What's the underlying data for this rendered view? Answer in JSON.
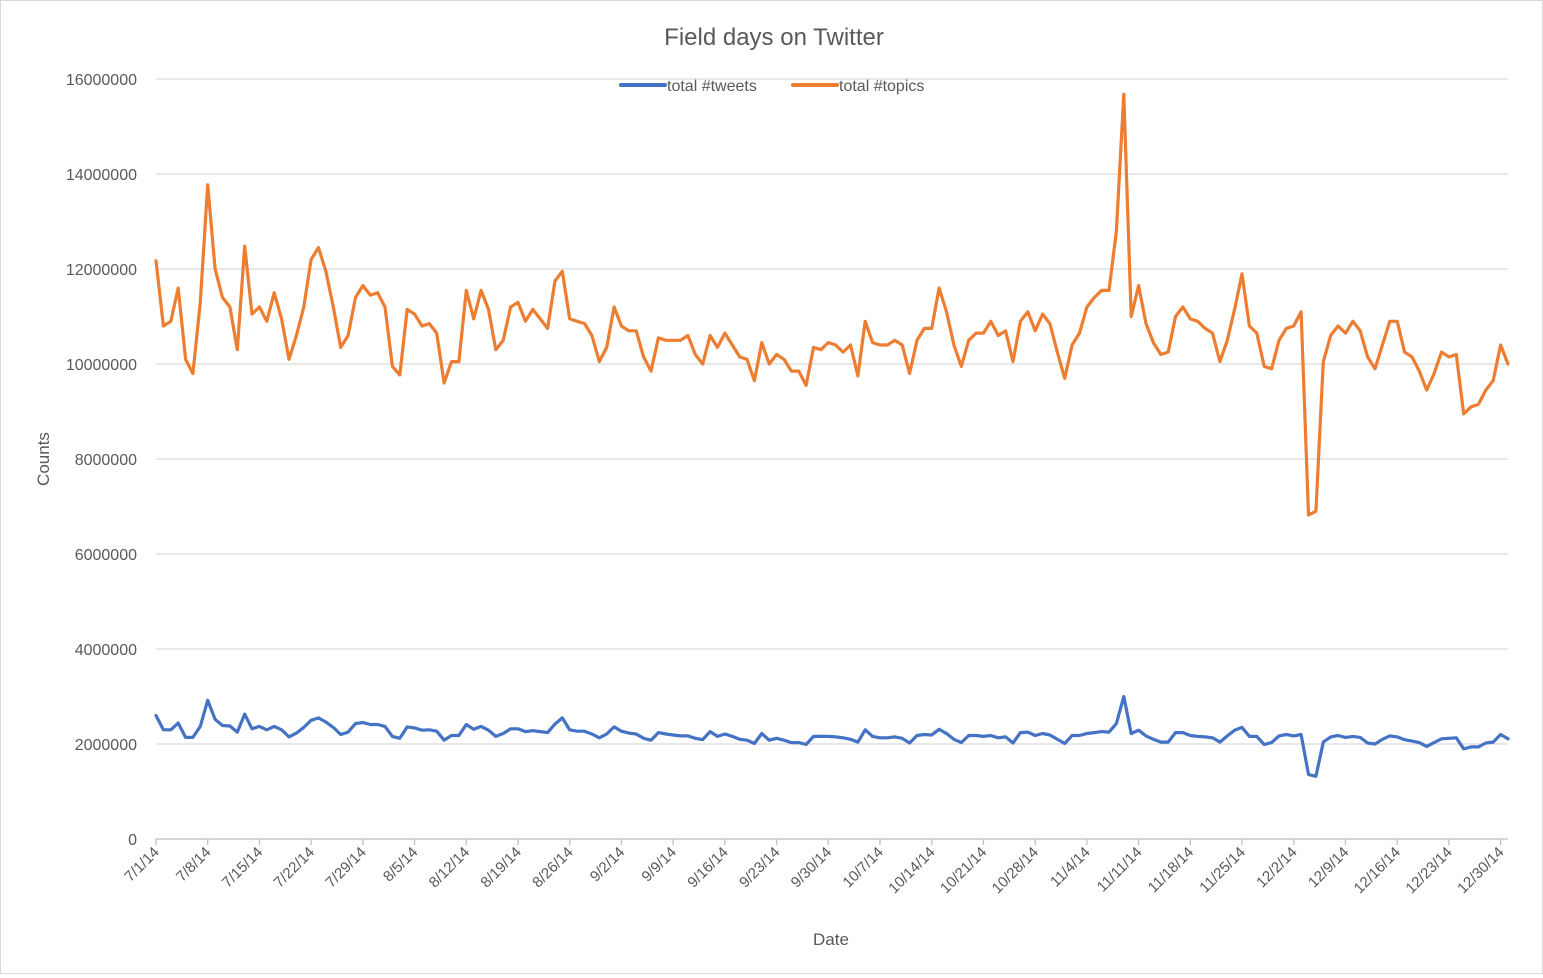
{
  "chart_data": {
    "type": "line",
    "title": "Field days on Twitter",
    "xlabel": "Date",
    "ylabel": "Counts",
    "ylim": [
      0,
      16000000
    ],
    "yticks": [
      "0",
      "2000000",
      "4000000",
      "6000000",
      "8000000",
      "10000000",
      "12000000",
      "14000000",
      "16000000"
    ],
    "xtick_labels": [
      "7/1/14",
      "7/8/14",
      "7/15/14",
      "7/22/14",
      "7/29/14",
      "8/5/14",
      "8/12/14",
      "8/19/14",
      "8/26/14",
      "9/2/14",
      "9/9/14",
      "9/16/14",
      "9/23/14",
      "9/30/14",
      "10/7/14",
      "10/14/14",
      "10/21/14",
      "10/28/14",
      "11/4/14",
      "11/11/14",
      "11/18/14",
      "11/25/14",
      "12/2/14",
      "12/9/14",
      "12/16/14",
      "12/23/14",
      "12/30/14"
    ],
    "grid": true,
    "legend_position": "top",
    "x": [
      "7/1/14",
      "7/2/14",
      "7/3/14",
      "7/4/14",
      "7/5/14",
      "7/6/14",
      "7/7/14",
      "7/8/14",
      "7/9/14",
      "7/10/14",
      "7/11/14",
      "7/12/14",
      "7/13/14",
      "7/14/14",
      "7/15/14",
      "7/16/14",
      "7/17/14",
      "7/18/14",
      "7/19/14",
      "7/20/14",
      "7/21/14",
      "7/22/14",
      "7/23/14",
      "7/24/14",
      "7/25/14",
      "7/26/14",
      "7/27/14",
      "7/28/14",
      "7/29/14",
      "7/30/14",
      "7/31/14",
      "8/1/14",
      "8/2/14",
      "8/3/14",
      "8/4/14",
      "8/5/14",
      "8/6/14",
      "8/7/14",
      "8/8/14",
      "8/9/14",
      "8/10/14",
      "8/11/14",
      "8/12/14",
      "8/13/14",
      "8/14/14",
      "8/15/14",
      "8/16/14",
      "8/17/14",
      "8/18/14",
      "8/19/14",
      "8/20/14",
      "8/21/14",
      "8/22/14",
      "8/23/14",
      "8/24/14",
      "8/25/14",
      "8/26/14",
      "8/27/14",
      "8/28/14",
      "8/29/14",
      "8/30/14",
      "8/31/14",
      "9/1/14",
      "9/2/14",
      "9/3/14",
      "9/4/14",
      "9/5/14",
      "9/6/14",
      "9/7/14",
      "9/8/14",
      "9/9/14",
      "9/10/14",
      "9/11/14",
      "9/12/14",
      "9/13/14",
      "9/14/14",
      "9/15/14",
      "9/16/14",
      "9/17/14",
      "9/18/14",
      "9/19/14",
      "9/20/14",
      "9/21/14",
      "9/22/14",
      "9/23/14",
      "9/24/14",
      "9/25/14",
      "9/26/14",
      "9/27/14",
      "9/28/14",
      "9/29/14",
      "9/30/14",
      "10/1/14",
      "10/2/14",
      "10/3/14",
      "10/4/14",
      "10/5/14",
      "10/6/14",
      "10/7/14",
      "10/8/14",
      "10/9/14",
      "10/10/14",
      "10/11/14",
      "10/12/14",
      "10/13/14",
      "10/14/14",
      "10/15/14",
      "10/16/14",
      "10/17/14",
      "10/18/14",
      "10/19/14",
      "10/20/14",
      "10/21/14",
      "10/22/14",
      "10/23/14",
      "10/24/14",
      "10/25/14",
      "10/26/14",
      "10/27/14",
      "10/28/14",
      "10/29/14",
      "10/30/14",
      "10/31/14",
      "11/1/14",
      "11/2/14",
      "11/3/14",
      "11/4/14",
      "11/5/14",
      "11/6/14",
      "11/7/14",
      "11/8/14",
      "11/9/14",
      "11/10/14",
      "11/11/14",
      "11/12/14",
      "11/13/14",
      "11/14/14",
      "11/15/14",
      "11/16/14",
      "11/17/14",
      "11/18/14",
      "11/19/14",
      "11/20/14",
      "11/21/14",
      "11/22/14",
      "11/23/14",
      "11/24/14",
      "11/25/14",
      "11/26/14",
      "11/27/14",
      "11/28/14",
      "11/29/14",
      "11/30/14",
      "12/1/14",
      "12/2/14",
      "12/3/14",
      "12/4/14",
      "12/5/14",
      "12/6/14",
      "12/7/14",
      "12/8/14",
      "12/9/14",
      "12/10/14",
      "12/11/14",
      "12/12/14",
      "12/13/14",
      "12/14/14",
      "12/15/14",
      "12/16/14",
      "12/17/14",
      "12/18/14",
      "12/19/14",
      "12/20/14",
      "12/21/14",
      "12/22/14",
      "12/23/14",
      "12/24/14",
      "12/25/14",
      "12/26/14",
      "12/27/14",
      "12/28/14",
      "12/29/14",
      "12/30/14",
      "12/31/14"
    ],
    "series": [
      {
        "name": "total #tweets",
        "color": "#4472C4",
        "values": [
          2600000,
          2300000,
          2300000,
          2440000,
          2140000,
          2140000,
          2370000,
          2920000,
          2520000,
          2390000,
          2380000,
          2250000,
          2630000,
          2320000,
          2370000,
          2300000,
          2370000,
          2300000,
          2150000,
          2230000,
          2350000,
          2500000,
          2550000,
          2460000,
          2350000,
          2200000,
          2250000,
          2430000,
          2450000,
          2410000,
          2410000,
          2370000,
          2160000,
          2120000,
          2360000,
          2340000,
          2290000,
          2300000,
          2270000,
          2080000,
          2180000,
          2180000,
          2410000,
          2310000,
          2370000,
          2290000,
          2160000,
          2220000,
          2320000,
          2320000,
          2260000,
          2280000,
          2260000,
          2240000,
          2420000,
          2550000,
          2300000,
          2270000,
          2270000,
          2210000,
          2130000,
          2210000,
          2360000,
          2270000,
          2230000,
          2210000,
          2120000,
          2080000,
          2240000,
          2210000,
          2190000,
          2170000,
          2170000,
          2120000,
          2090000,
          2260000,
          2160000,
          2210000,
          2160000,
          2100000,
          2080000,
          2010000,
          2220000,
          2080000,
          2120000,
          2080000,
          2030000,
          2030000,
          1990000,
          2160000,
          2160000,
          2160000,
          2150000,
          2130000,
          2100000,
          2040000,
          2300000,
          2160000,
          2130000,
          2130000,
          2150000,
          2120000,
          2020000,
          2180000,
          2200000,
          2190000,
          2310000,
          2220000,
          2100000,
          2030000,
          2180000,
          2180000,
          2160000,
          2180000,
          2130000,
          2150000,
          2020000,
          2240000,
          2250000,
          2180000,
          2220000,
          2190000,
          2100000,
          2010000,
          2180000,
          2180000,
          2220000,
          2240000,
          2260000,
          2250000,
          2430000,
          3000000,
          2220000,
          2290000,
          2170000,
          2100000,
          2040000,
          2040000,
          2240000,
          2240000,
          2180000,
          2160000,
          2150000,
          2130000,
          2040000,
          2170000,
          2290000,
          2350000,
          2160000,
          2160000,
          1990000,
          2030000,
          2170000,
          2200000,
          2170000,
          2200000,
          1360000,
          1320000,
          2040000,
          2150000,
          2180000,
          2140000,
          2160000,
          2140000,
          2020000,
          2000000,
          2100000,
          2170000,
          2150000,
          2090000,
          2060000,
          2030000,
          1950000,
          2030000,
          2110000,
          2120000,
          2130000,
          1900000,
          1940000,
          1940000,
          2020000,
          2040000,
          2200000,
          2110000
        ]
      },
      {
        "name": "total #topics",
        "color": "#ED7D31",
        "values": [
          12170000,
          10800000,
          10900000,
          11600000,
          10100000,
          9800000,
          11300000,
          13770000,
          12000000,
          11400000,
          11200000,
          10300000,
          12480000,
          11050000,
          11200000,
          10900000,
          11500000,
          10950000,
          10100000,
          10600000,
          11200000,
          12200000,
          12450000,
          11950000,
          11200000,
          10350000,
          10600000,
          11400000,
          11650000,
          11450000,
          11500000,
          11200000,
          9950000,
          9770000,
          11150000,
          11050000,
          10800000,
          10850000,
          10650000,
          9600000,
          10050000,
          10050000,
          11550000,
          10950000,
          11550000,
          11150000,
          10300000,
          10500000,
          11200000,
          11300000,
          10900000,
          11150000,
          10950000,
          10750000,
          11750000,
          11950000,
          10950000,
          10900000,
          10850000,
          10600000,
          10050000,
          10350000,
          11200000,
          10800000,
          10700000,
          10700000,
          10150000,
          9850000,
          10550000,
          10500000,
          10500000,
          10500000,
          10600000,
          10200000,
          10000000,
          10600000,
          10350000,
          10650000,
          10400000,
          10150000,
          10100000,
          9650000,
          10450000,
          10000000,
          10200000,
          10100000,
          9850000,
          9850000,
          9550000,
          10350000,
          10300000,
          10450000,
          10400000,
          10250000,
          10400000,
          9750000,
          10900000,
          10450000,
          10400000,
          10400000,
          10500000,
          10400000,
          9800000,
          10500000,
          10750000,
          10750000,
          11600000,
          11100000,
          10400000,
          9950000,
          10500000,
          10650000,
          10650000,
          10900000,
          10600000,
          10700000,
          10050000,
          10900000,
          11100000,
          10700000,
          11050000,
          10850000,
          10250000,
          9700000,
          10400000,
          10650000,
          11200000,
          11400000,
          11550000,
          11550000,
          12800000,
          15680000,
          11000000,
          11650000,
          10850000,
          10450000,
          10200000,
          10250000,
          11000000,
          11200000,
          10950000,
          10900000,
          10750000,
          10650000,
          10050000,
          10500000,
          11150000,
          11900000,
          10800000,
          10650000,
          9950000,
          9900000,
          10500000,
          10750000,
          10800000,
          11100000,
          6820000,
          6900000,
          10050000,
          10600000,
          10800000,
          10650000,
          10900000,
          10700000,
          10150000,
          9900000,
          10400000,
          10900000,
          10900000,
          10250000,
          10150000,
          9850000,
          9450000,
          9800000,
          10250000,
          10150000,
          10200000,
          8950000,
          9100000,
          9150000,
          9450000,
          9650000,
          10400000,
          10000000
        ]
      }
    ]
  }
}
